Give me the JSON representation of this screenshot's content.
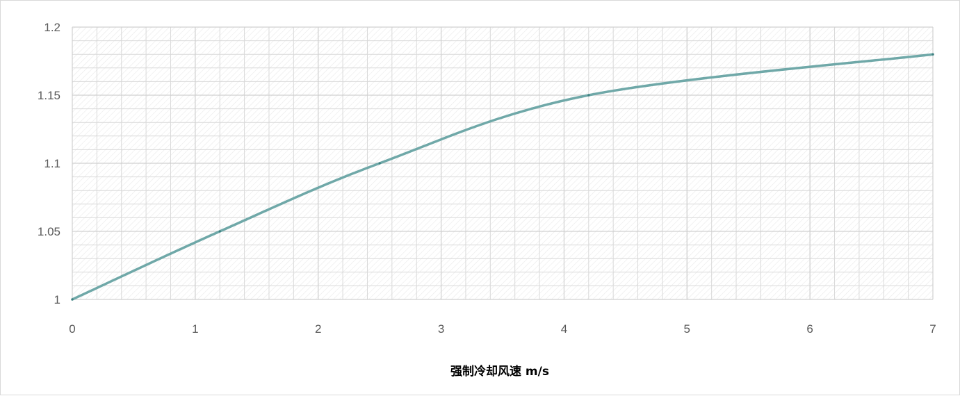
{
  "chart_data": {
    "type": "line",
    "title": "",
    "xlabel": "强制冷却风速 m/s",
    "ylabel": "",
    "xlim": [
      0,
      7
    ],
    "ylim": [
      1,
      1.2
    ],
    "x_ticks": [
      0,
      1,
      2,
      3,
      4,
      5,
      6,
      7
    ],
    "x_tick_labels": [
      "0",
      "1",
      "2",
      "3",
      "4",
      "5",
      "6",
      "7"
    ],
    "y_ticks": [
      1,
      1.05,
      1.1,
      1.15,
      1.2
    ],
    "y_tick_labels": [
      "1",
      "1.05",
      "1.1",
      "1.15",
      "1.2"
    ],
    "x_minor_step": 0.2,
    "y_minor_step": 0.01,
    "grid": true,
    "legend": "none",
    "series": [
      {
        "x": [
          0,
          1.2,
          2.5,
          4.2,
          7
        ],
        "y": [
          1.0,
          1.05,
          1.1,
          1.15,
          1.18
        ],
        "color": "#6fa8a8",
        "smooth": true,
        "marker_color": "#3f8080"
      }
    ],
    "colors": {
      "grid": "#d9d9d9",
      "hatch": "#e6e6e6",
      "tick_text": "#595959",
      "frame": "#d9d9d9"
    }
  }
}
